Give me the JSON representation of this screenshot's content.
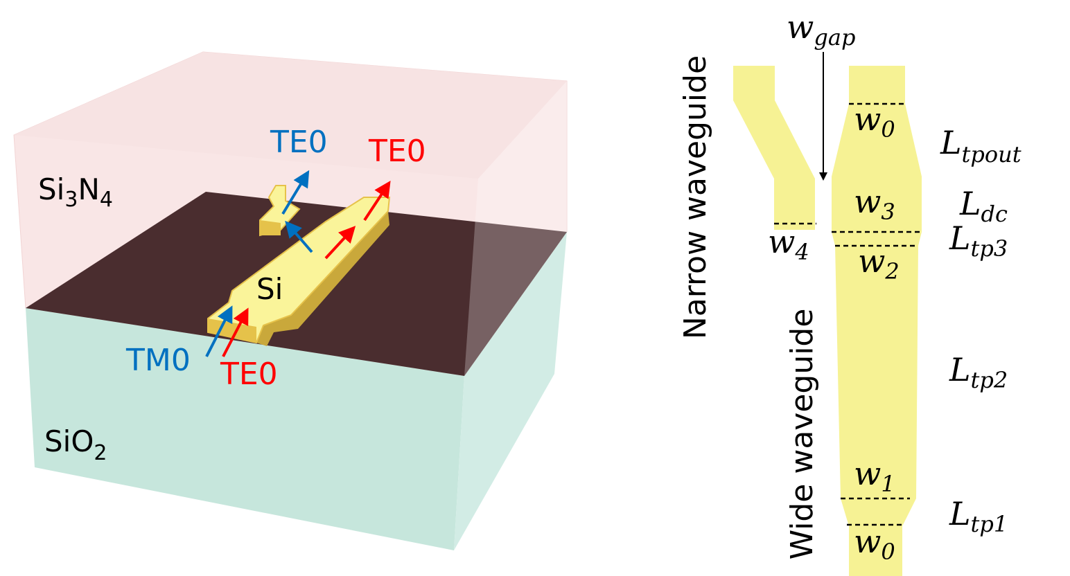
{
  "colors": {
    "si3n4": "#f9e6e6",
    "sio2": "#c6e6dc",
    "interface": "#4a2d2f",
    "silicon": "#f6f294",
    "te_mode": "#ff0000",
    "tm_mode": "#0070c0"
  },
  "left_panel": {
    "cladding_label": {
      "base": "Si",
      "sub1": "3",
      "mid": "N",
      "sub2": "4"
    },
    "substrate_label": {
      "base": "SiO",
      "sub": "2"
    },
    "core_label": "Si",
    "input_tm": "TM0",
    "input_te": "TE0",
    "output_narrow": "TE0",
    "output_wide": "TE0"
  },
  "right_panel": {
    "narrow_label": "Narrow waveguide",
    "wide_label": "Wide waveguide",
    "w_gap": {
      "base": "w",
      "sub": "gap"
    },
    "w0_top": {
      "base": "w",
      "sub": "0"
    },
    "w3": {
      "base": "w",
      "sub": "3"
    },
    "w4": {
      "base": "w",
      "sub": "4"
    },
    "w2": {
      "base": "w",
      "sub": "2"
    },
    "w1": {
      "base": "w",
      "sub": "1"
    },
    "w0_bottom": {
      "base": "w",
      "sub": "0"
    },
    "L_tpout": {
      "base": "L",
      "sub": "tpout"
    },
    "L_dc": {
      "base": "L",
      "sub": "dc"
    },
    "L_tp3": {
      "base": "L",
      "sub": "tp3"
    },
    "L_tp2": {
      "base": "L",
      "sub": "tp2"
    },
    "L_tp1": {
      "base": "L",
      "sub": "tp1"
    }
  }
}
